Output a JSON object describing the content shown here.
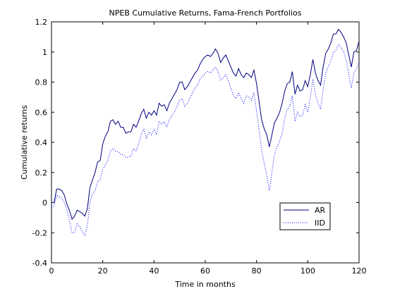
{
  "chart_data": {
    "type": "line",
    "title": "NPEB Cumulative Returns, Fama-French Portfolios",
    "xlabel": "Time in months",
    "ylabel": "Cumulative returns",
    "xlim": [
      0,
      120
    ],
    "ylim": [
      -0.4,
      1.2
    ],
    "x_ticks": [
      "0",
      "20",
      "40",
      "60",
      "80",
      "100",
      "120"
    ],
    "y_ticks": [
      "-0.4",
      "-0.2",
      "0",
      "0.2",
      "0.4",
      "0.6",
      "0.8",
      "1",
      "1.2"
    ],
    "grid": false,
    "legend_position": "lower-right",
    "series": [
      {
        "name": "AR",
        "color": "#00007f",
        "style": "solid",
        "x": [
          0,
          1,
          2,
          3,
          4,
          5,
          6,
          7,
          8,
          9,
          10,
          11,
          12,
          13,
          14,
          15,
          16,
          17,
          18,
          19,
          20,
          21,
          22,
          23,
          24,
          25,
          26,
          27,
          28,
          29,
          30,
          31,
          32,
          33,
          34,
          35,
          36,
          37,
          38,
          39,
          40,
          41,
          42,
          43,
          44,
          45,
          46,
          47,
          48,
          49,
          50,
          51,
          52,
          53,
          54,
          55,
          56,
          57,
          58,
          59,
          60,
          61,
          62,
          63,
          64,
          65,
          66,
          67,
          68,
          69,
          70,
          71,
          72,
          73,
          74,
          75,
          76,
          77,
          78,
          79,
          80,
          81,
          82,
          83,
          84,
          85,
          86,
          87,
          88,
          89,
          90,
          91,
          92,
          93,
          94,
          95,
          96,
          97,
          98,
          99,
          100,
          101,
          102,
          103,
          104,
          105,
          106,
          107,
          108,
          109,
          110,
          111,
          112,
          113,
          114,
          115,
          116,
          117,
          118,
          119,
          120
        ],
        "values": [
          0,
          0,
          0.09,
          0.09,
          0.08,
          0.05,
          -0.01,
          -0.05,
          -0.11,
          -0.09,
          -0.05,
          -0.06,
          -0.07,
          -0.09,
          -0.04,
          0.1,
          0.15,
          0.2,
          0.27,
          0.28,
          0.39,
          0.44,
          0.47,
          0.54,
          0.55,
          0.52,
          0.54,
          0.5,
          0.5,
          0.46,
          0.47,
          0.47,
          0.52,
          0.5,
          0.54,
          0.59,
          0.62,
          0.56,
          0.6,
          0.58,
          0.61,
          0.58,
          0.66,
          0.64,
          0.65,
          0.61,
          0.66,
          0.69,
          0.72,
          0.75,
          0.8,
          0.8,
          0.75,
          0.77,
          0.8,
          0.83,
          0.86,
          0.88,
          0.92,
          0.95,
          0.97,
          0.98,
          0.97,
          0.99,
          1.02,
          0.99,
          0.93,
          0.96,
          0.98,
          0.94,
          0.9,
          0.86,
          0.84,
          0.89,
          0.85,
          0.83,
          0.86,
          0.85,
          0.83,
          0.88,
          0.79,
          0.67,
          0.55,
          0.49,
          0.45,
          0.37,
          0.45,
          0.53,
          0.56,
          0.6,
          0.66,
          0.74,
          0.79,
          0.8,
          0.87,
          0.72,
          0.78,
          0.74,
          0.75,
          0.81,
          0.77,
          0.85,
          0.95,
          0.86,
          0.81,
          0.78,
          0.9,
          0.99,
          1.02,
          1.06,
          1.12,
          1.12,
          1.15,
          1.13,
          1.1,
          1.06,
          0.98,
          0.9,
          1.0,
          1.01,
          1.07
        ]
      },
      {
        "name": "IID",
        "color": "#0000ff",
        "style": "dotted",
        "x": [
          0,
          1,
          2,
          3,
          4,
          5,
          6,
          7,
          8,
          9,
          10,
          11,
          12,
          13,
          14,
          15,
          16,
          17,
          18,
          19,
          20,
          21,
          22,
          23,
          24,
          25,
          26,
          27,
          28,
          29,
          30,
          31,
          32,
          33,
          34,
          35,
          36,
          37,
          38,
          39,
          40,
          41,
          42,
          43,
          44,
          45,
          46,
          47,
          48,
          49,
          50,
          51,
          52,
          53,
          54,
          55,
          56,
          57,
          58,
          59,
          60,
          61,
          62,
          63,
          64,
          65,
          66,
          67,
          68,
          69,
          70,
          71,
          72,
          73,
          74,
          75,
          76,
          77,
          78,
          79,
          80,
          81,
          82,
          83,
          84,
          85,
          86,
          87,
          88,
          89,
          90,
          91,
          92,
          93,
          94,
          95,
          96,
          97,
          98,
          99,
          100,
          101,
          102,
          103,
          104,
          105,
          106,
          107,
          108,
          109,
          110,
          111,
          112,
          113,
          114,
          115,
          116,
          117,
          118,
          119,
          120
        ],
        "values": [
          -0.03,
          -0.02,
          0.05,
          0.04,
          0.03,
          0,
          -0.05,
          -0.12,
          -0.2,
          -0.2,
          -0.14,
          -0.16,
          -0.19,
          -0.22,
          -0.15,
          0,
          0.06,
          0.08,
          0.14,
          0.15,
          0.22,
          0.25,
          0.28,
          0.34,
          0.36,
          0.34,
          0.34,
          0.32,
          0.32,
          0.3,
          0.3,
          0.31,
          0.36,
          0.34,
          0.39,
          0.45,
          0.49,
          0.43,
          0.47,
          0.45,
          0.49,
          0.45,
          0.54,
          0.52,
          0.54,
          0.5,
          0.55,
          0.58,
          0.6,
          0.64,
          0.68,
          0.69,
          0.64,
          0.66,
          0.69,
          0.73,
          0.76,
          0.78,
          0.82,
          0.84,
          0.86,
          0.87,
          0.86,
          0.88,
          0.9,
          0.87,
          0.81,
          0.83,
          0.85,
          0.81,
          0.76,
          0.71,
          0.69,
          0.73,
          0.69,
          0.66,
          0.71,
          0.7,
          0.68,
          0.73,
          0.61,
          0.48,
          0.35,
          0.26,
          0.18,
          0.08,
          0.2,
          0.32,
          0.37,
          0.41,
          0.46,
          0.56,
          0.62,
          0.64,
          0.71,
          0.54,
          0.6,
          0.57,
          0.58,
          0.65,
          0.6,
          0.7,
          0.82,
          0.72,
          0.66,
          0.62,
          0.75,
          0.86,
          0.9,
          0.94,
          1.0,
          1.01,
          1.05,
          1.03,
          1.0,
          0.95,
          0.85,
          0.76,
          0.86,
          0.89,
          0.93
        ]
      }
    ]
  }
}
